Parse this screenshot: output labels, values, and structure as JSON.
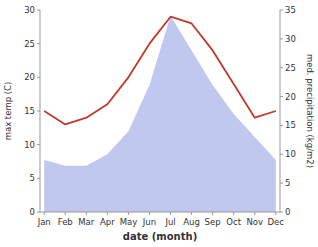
{
  "chart_data": {
    "type": "line",
    "categories": [
      "Jan",
      "Feb",
      "Mar",
      "Apr",
      "May",
      "Jun",
      "Jul",
      "Aug",
      "Sep",
      "Oct",
      "Nov",
      "Dec"
    ],
    "x_label": "date (month)",
    "y_label": "max temp (C)",
    "y2_label": "med. precipitation (kg/m2)",
    "series": [
      {
        "type": "area",
        "axis": "y2",
        "color": "#c0c8f0",
        "values": [
          9,
          8,
          8,
          10,
          14,
          22,
          34,
          28,
          22,
          17,
          13,
          9
        ]
      },
      {
        "type": "line",
        "color": "#c0392b",
        "values": [
          15,
          13,
          14,
          16,
          20,
          25,
          29,
          28,
          24,
          19,
          14,
          15
        ]
      }
    ],
    "ylim": [
      0,
      30
    ],
    "yticks": [
      0,
      5,
      10,
      15,
      20,
      25,
      30
    ],
    "y2lim": [
      0,
      35
    ],
    "y2ticks": [
      0,
      5,
      10,
      15,
      20,
      25,
      30,
      35
    ],
    "grid": false
  }
}
